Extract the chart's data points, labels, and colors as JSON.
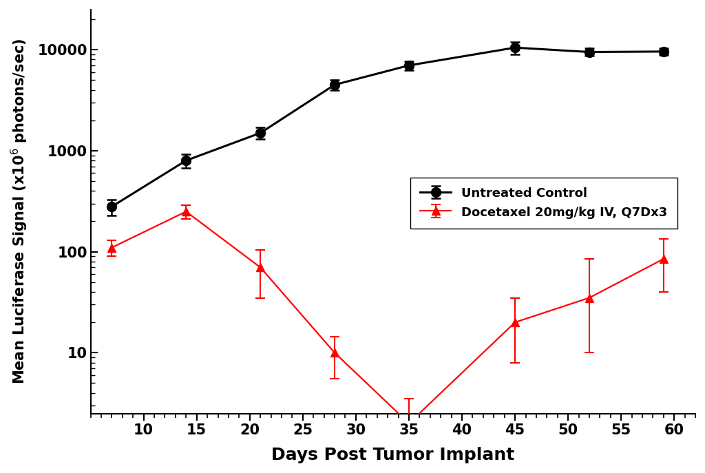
{
  "black_x": [
    7,
    14,
    21,
    28,
    35,
    45,
    52,
    59
  ],
  "black_y": [
    280,
    800,
    1500,
    4500,
    7000,
    10500,
    9500,
    9600
  ],
  "black_yerr_lo": [
    50,
    120,
    200,
    500,
    700,
    1500,
    800,
    700
  ],
  "black_yerr_hi": [
    50,
    120,
    200,
    500,
    700,
    1500,
    800,
    700
  ],
  "red_x": [
    7,
    14,
    21,
    28,
    35,
    45,
    52,
    59
  ],
  "red_y": [
    110,
    250,
    70,
    10,
    2,
    20,
    35,
    85
  ],
  "red_yerr_lo": [
    20,
    40,
    35,
    4.5,
    1.5,
    12,
    25,
    45
  ],
  "red_yerr_hi": [
    20,
    40,
    35,
    4.5,
    1.5,
    15,
    50,
    50
  ],
  "xlabel": "Days Post Tumor Implant",
  "ylabel": "Mean Luciferase Signal (x10$^6$ photons/sec)",
  "legend_black": "Untreated Control",
  "legend_red": "Docetaxel 20mg/kg IV, Q7Dx3",
  "xlim": [
    5,
    62
  ],
  "ylim_lo": 2.5,
  "ylim_hi": 25000,
  "xticks": [
    10,
    15,
    20,
    25,
    30,
    35,
    40,
    45,
    50,
    55,
    60
  ],
  "yticks_log": [
    10,
    100,
    1000,
    10000
  ],
  "background_color": "#ffffff",
  "line_color_black": "#000000",
  "line_color_red": "#ff0000"
}
